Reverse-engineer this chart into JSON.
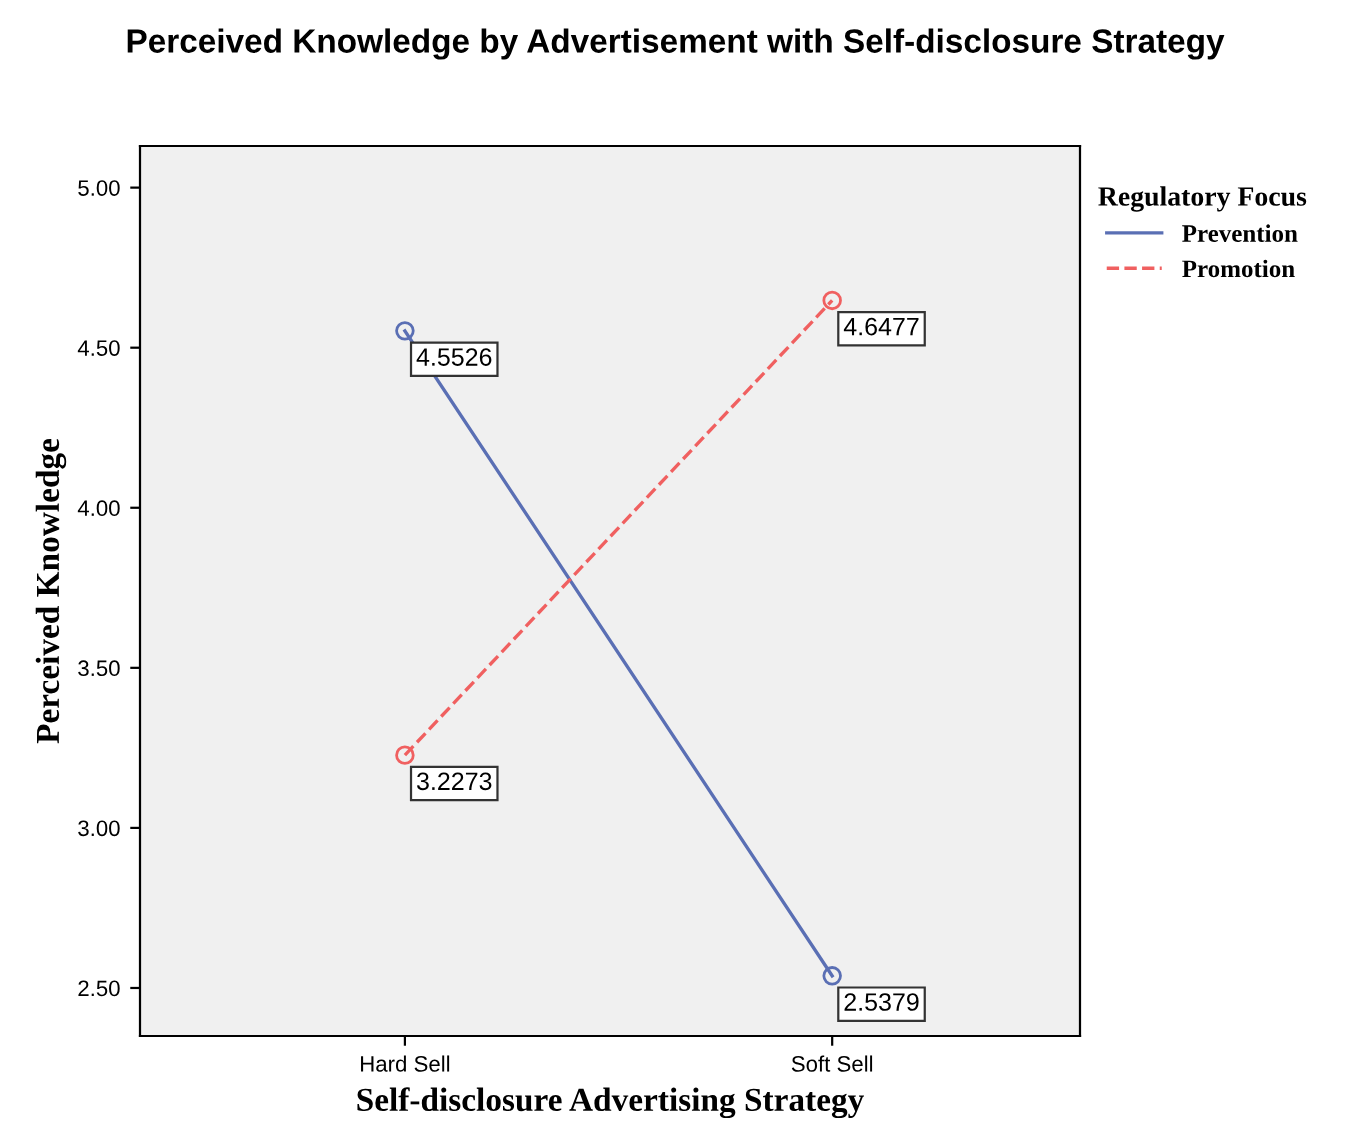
{
  "chart_data": {
    "type": "line",
    "title": "Perceived Knowledge by Advertisement with Self-disclosure Strategy",
    "xlabel": "Self-disclosure Advertising Strategy",
    "ylabel": "Perceived Knowledge",
    "legend_title": "Regulatory Focus",
    "categories": [
      "Hard Sell",
      "Soft Sell"
    ],
    "series": [
      {
        "name": "Prevention",
        "color": "#5a6fb4",
        "values": [
          4.5526,
          2.5379
        ],
        "line_style": "solid"
      },
      {
        "name": "Promotion",
        "color": "#f06060",
        "values": [
          3.2273,
          4.6477
        ],
        "line_style": "dashed"
      }
    ],
    "ylim": [
      2.35,
      5.13
    ],
    "yticks": [
      {
        "value": 2.5,
        "label": "2.50"
      },
      {
        "value": 3.0,
        "label": "3.00"
      },
      {
        "value": 3.5,
        "label": "3.50"
      },
      {
        "value": 4.0,
        "label": "4.00"
      },
      {
        "value": 4.5,
        "label": "4.50"
      },
      {
        "value": 5.0,
        "label": "5.00"
      }
    ],
    "marker": "circle",
    "data_labels": true,
    "legend": "right",
    "grid": false
  }
}
